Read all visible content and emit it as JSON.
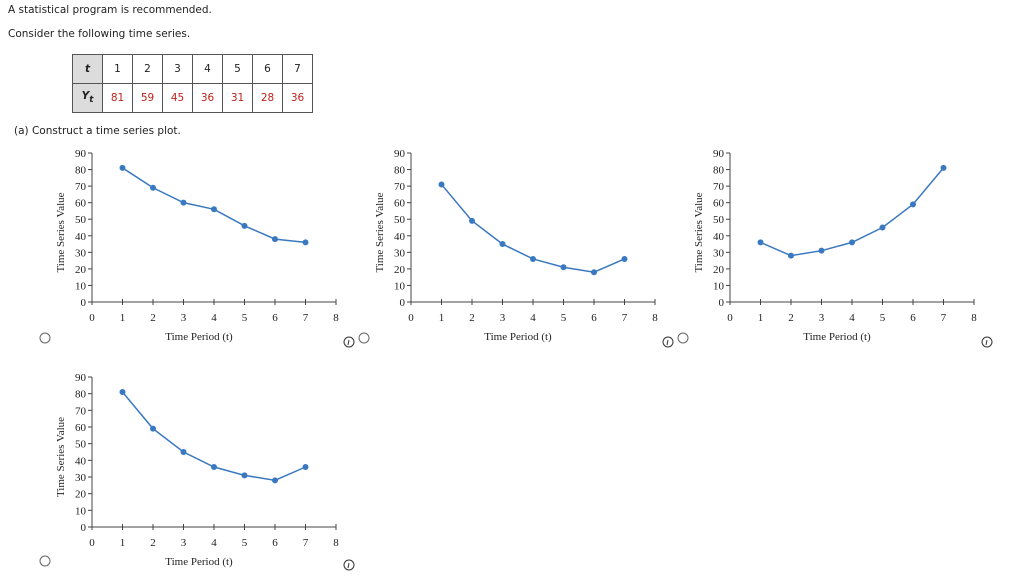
{
  "intro": "A statistical program is recommended.",
  "prompt": "Consider the following time series.",
  "table": {
    "row_labels": [
      {
        "main": "t",
        "sub": ""
      },
      {
        "main": "Y",
        "sub": "t"
      }
    ],
    "rows": [
      [
        1,
        2,
        3,
        4,
        5,
        6,
        7
      ],
      [
        81,
        59,
        45,
        36,
        31,
        28,
        36
      ]
    ]
  },
  "part_a": "(a)   Construct a time series plot.",
  "chart_data": [
    {
      "type": "line",
      "xlabel": "Time Period (t)",
      "ylabel": "Time Series Value",
      "x": [
        1,
        2,
        3,
        4,
        5,
        6,
        7
      ],
      "series": [
        {
          "color": "#3a78c0",
          "values": [
            81,
            69,
            60,
            56,
            46,
            38,
            36
          ]
        }
      ],
      "xlim": [
        0,
        8
      ],
      "xticks": [
        0,
        1,
        2,
        3,
        4,
        5,
        6,
        7,
        8
      ],
      "ylim": [
        0,
        90
      ],
      "yticks": [
        0,
        10,
        20,
        30,
        40,
        50,
        60,
        70,
        80,
        90
      ]
    },
    {
      "type": "line",
      "xlabel": "Time Period (t)",
      "ylabel": "Time Series Value",
      "x": [
        1,
        2,
        3,
        4,
        5,
        6,
        7
      ],
      "series": [
        {
          "color": "#3a78c0",
          "values": [
            71,
            49,
            35,
            26,
            21,
            18,
            26
          ]
        }
      ],
      "xlim": [
        0,
        8
      ],
      "xticks": [
        0,
        1,
        2,
        3,
        4,
        5,
        6,
        7,
        8
      ],
      "ylim": [
        0,
        90
      ],
      "yticks": [
        0,
        10,
        20,
        30,
        40,
        50,
        60,
        70,
        80,
        90
      ]
    },
    {
      "type": "line",
      "xlabel": "Time Period (t)",
      "ylabel": "Time Series Value",
      "x": [
        1,
        2,
        3,
        4,
        5,
        6,
        7
      ],
      "series": [
        {
          "color": "#3a78c0",
          "values": [
            36,
            28,
            31,
            36,
            45,
            59,
            81
          ]
        }
      ],
      "xlim": [
        0,
        8
      ],
      "xticks": [
        0,
        1,
        2,
        3,
        4,
        5,
        6,
        7,
        8
      ],
      "ylim": [
        0,
        90
      ],
      "yticks": [
        0,
        10,
        20,
        30,
        40,
        50,
        60,
        70,
        80,
        90
      ]
    },
    {
      "type": "line",
      "xlabel": "Time Period (t)",
      "ylabel": "Time Series Value",
      "x": [
        1,
        2,
        3,
        4,
        5,
        6,
        7
      ],
      "series": [
        {
          "color": "#3a78c0",
          "values": [
            81,
            59,
            45,
            36,
            31,
            28,
            36
          ]
        }
      ],
      "xlim": [
        0,
        8
      ],
      "xticks": [
        0,
        1,
        2,
        3,
        4,
        5,
        6,
        7,
        8
      ],
      "ylim": [
        0,
        90
      ],
      "yticks": [
        0,
        10,
        20,
        30,
        40,
        50,
        60,
        70,
        80,
        90
      ]
    }
  ]
}
